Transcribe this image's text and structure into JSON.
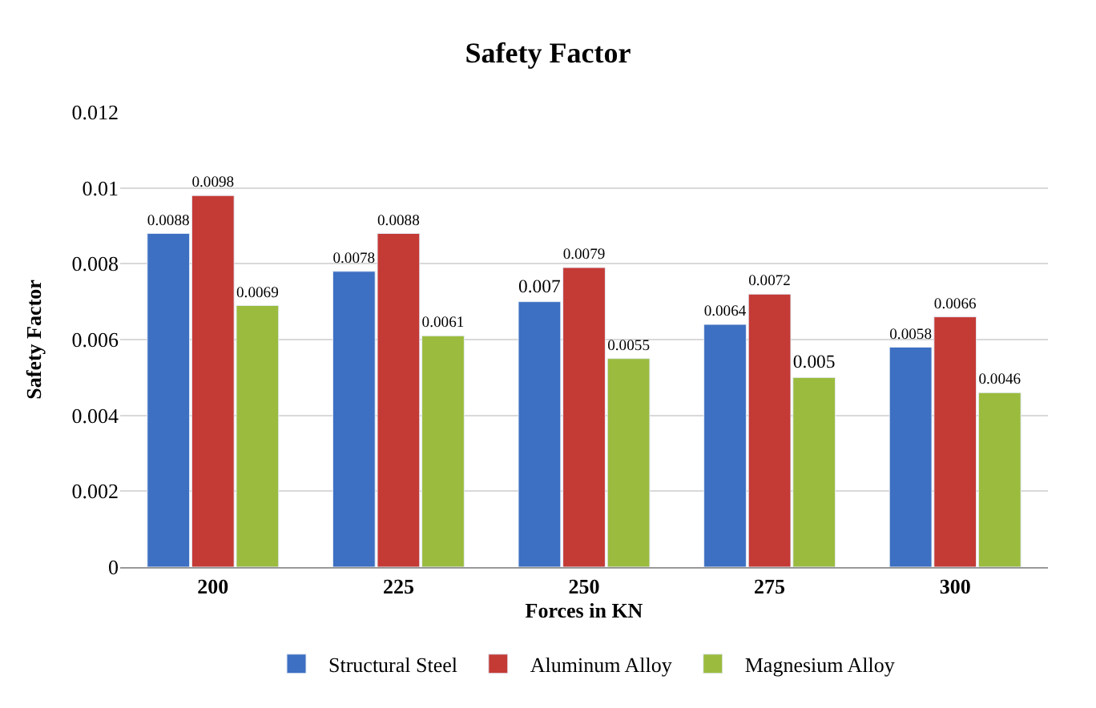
{
  "chart_data": {
    "type": "bar",
    "title": "Safety Factor",
    "xlabel": "Forces in KN",
    "ylabel": "Safety Factor",
    "categories": [
      "200",
      "225",
      "250",
      "275",
      "300"
    ],
    "series": [
      {
        "name": "Structural Steel",
        "color": "#3d6fc2",
        "values": [
          0.0088,
          0.0078,
          0.007,
          0.0064,
          0.0058
        ]
      },
      {
        "name": "Aluminum Alloy",
        "color": "#c43a35",
        "values": [
          0.0098,
          0.0088,
          0.0079,
          0.0072,
          0.0066
        ]
      },
      {
        "name": "Magnesium Alloy",
        "color": "#9bbb3e",
        "values": [
          0.0069,
          0.0061,
          0.0055,
          0.005,
          0.0046
        ]
      }
    ],
    "ylim": [
      0,
      0.012
    ],
    "yticks": [
      0,
      0.002,
      0.004,
      0.006,
      0.008,
      0.01,
      0.012
    ],
    "grid": "y",
    "legend": "bottom",
    "data_labels": true
  }
}
